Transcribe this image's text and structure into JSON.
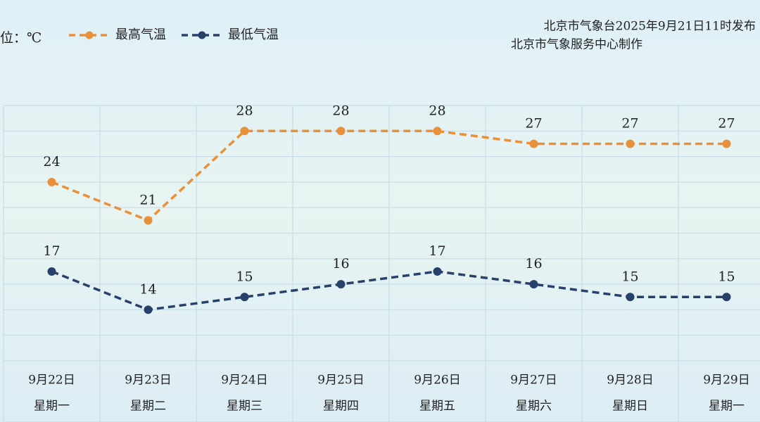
{
  "chart_data": {
    "type": "line",
    "unit_label": "位：℃",
    "source_lines": [
      "北京市气象台2025年9月21日11时发布",
      "北京市气象服务中心制作"
    ],
    "categories": [
      "9月22日",
      "9月23日",
      "9月24日",
      "9月25日",
      "9月26日",
      "9月27日",
      "9月28日",
      "9月29日"
    ],
    "weekdays": [
      "星期一",
      "星期二",
      "星期三",
      "星期四",
      "星期五",
      "星期六",
      "星期日",
      "星期一"
    ],
    "series": [
      {
        "name": "最高气温",
        "color": "#e8903a",
        "values": [
          24,
          21,
          28,
          28,
          28,
          27,
          27,
          27
        ]
      },
      {
        "name": "最低气温",
        "color": "#27416b",
        "values": [
          17,
          14,
          15,
          16,
          17,
          16,
          15,
          15
        ]
      }
    ],
    "ylim": [
      10,
      30
    ],
    "yticks": [
      10,
      12,
      14,
      16,
      18,
      20,
      22,
      24,
      26,
      28,
      30
    ],
    "grid": true
  }
}
